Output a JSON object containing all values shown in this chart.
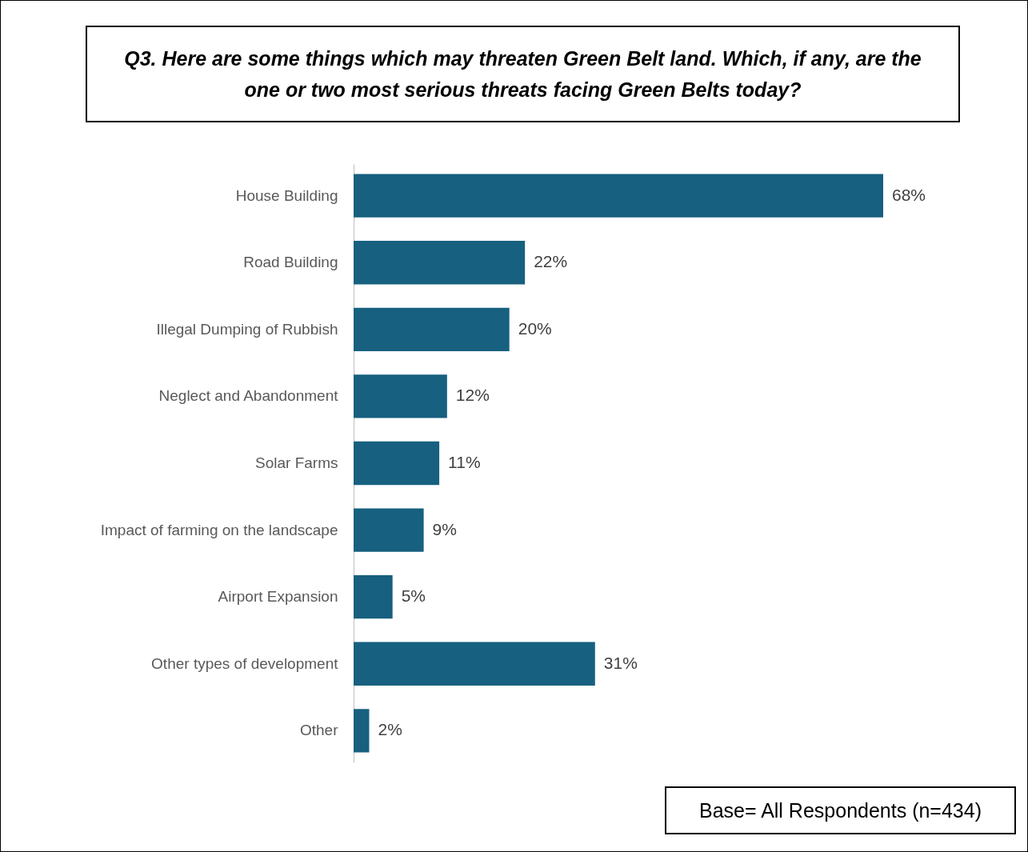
{
  "chart_data": {
    "type": "bar",
    "orientation": "horizontal",
    "title": "Q3. Here are some things which may threaten Green Belt land. Which, if any, are the one or two most serious threats facing Green Belts today?",
    "categories": [
      "House Building",
      "Road Building",
      "Illegal Dumping of Rubbish",
      "Neglect and Abandonment",
      "Solar Farms",
      "Impact of farming on the landscape",
      "Airport Expansion",
      "Other types of development",
      "Other"
    ],
    "values": [
      68,
      22,
      20,
      12,
      11,
      9,
      5,
      31,
      2
    ],
    "value_labels": [
      "68%",
      "22%",
      "20%",
      "12%",
      "11%",
      "9%",
      "5%",
      "31%",
      "2%"
    ],
    "color": "#17607f",
    "annotations": [
      "Base= All Respondents (n=434)"
    ]
  }
}
